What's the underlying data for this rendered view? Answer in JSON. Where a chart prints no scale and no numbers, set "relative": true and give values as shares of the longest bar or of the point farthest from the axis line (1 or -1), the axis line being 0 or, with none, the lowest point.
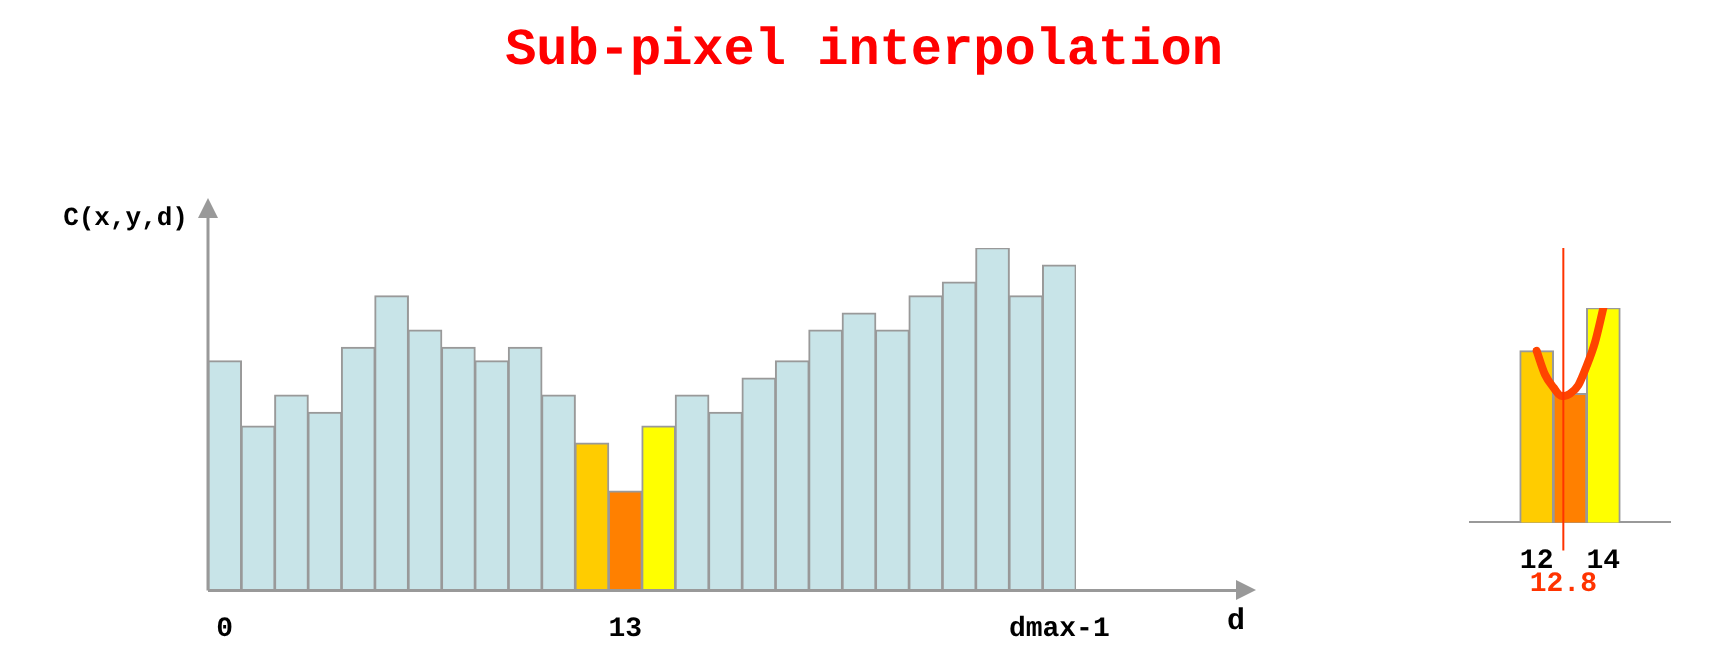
{
  "chart_data": [
    {
      "type": "bar",
      "title": "Sub-pixel interpolation",
      "xlabel": "d",
      "ylabel": "C(x,y,d)",
      "relative": true,
      "categories": [
        "0",
        null,
        null,
        null,
        null,
        null,
        null,
        null,
        null,
        null,
        null,
        null,
        "13",
        null,
        null,
        null,
        null,
        null,
        null,
        null,
        null,
        null,
        null,
        null,
        null,
        "dmax-1"
      ],
      "values": [
        0.67,
        0.48,
        0.57,
        0.52,
        0.71,
        0.86,
        0.76,
        0.71,
        0.67,
        0.71,
        0.57,
        0.43,
        0.29,
        0.48,
        0.57,
        0.52,
        0.62,
        0.67,
        0.76,
        0.81,
        0.76,
        0.86,
        0.9,
        1,
        0.86,
        0.95
      ],
      "colors": [
        "#c8e4e8",
        "#c8e4e8",
        "#c8e4e8",
        "#c8e4e8",
        "#c8e4e8",
        "#c8e4e8",
        "#c8e4e8",
        "#c8e4e8",
        "#c8e4e8",
        "#c8e4e8",
        "#c8e4e8",
        "#ffcc00",
        "#ff8000",
        "#ffff00",
        "#c8e4e8",
        "#c8e4e8",
        "#c8e4e8",
        "#c8e4e8",
        "#c8e4e8",
        "#c8e4e8",
        "#c8e4e8",
        "#c8e4e8",
        "#c8e4e8",
        "#c8e4e8",
        "#c8e4e8",
        "#c8e4e8"
      ]
    },
    {
      "type": "bar",
      "relative": true,
      "xlim": [
        11.5,
        14.5
      ],
      "xticks": [
        12,
        14
      ],
      "series": [
        {
          "x": [
            12,
            13,
            14
          ],
          "values": [
            0.8,
            0.6,
            1
          ],
          "colors": [
            "#ffcc00",
            "#ff8000",
            "#ffff00"
          ]
        },
        {
          "type": "line",
          "x": [
            12,
            12.25,
            12.5,
            12.75,
            12.83,
            13,
            13.25,
            13.5,
            13.75,
            14
          ],
          "values": [
            0.8,
            0.69,
            0.63,
            0.59,
            0.59,
            0.6,
            0.64,
            0.73,
            0.84,
            1
          ],
          "color": "#ff4400"
        }
      ],
      "ref_lines": [
        {
          "axis": "x",
          "value": 12.8,
          "label": "12.8",
          "color": "#ff3300"
        }
      ]
    }
  ]
}
